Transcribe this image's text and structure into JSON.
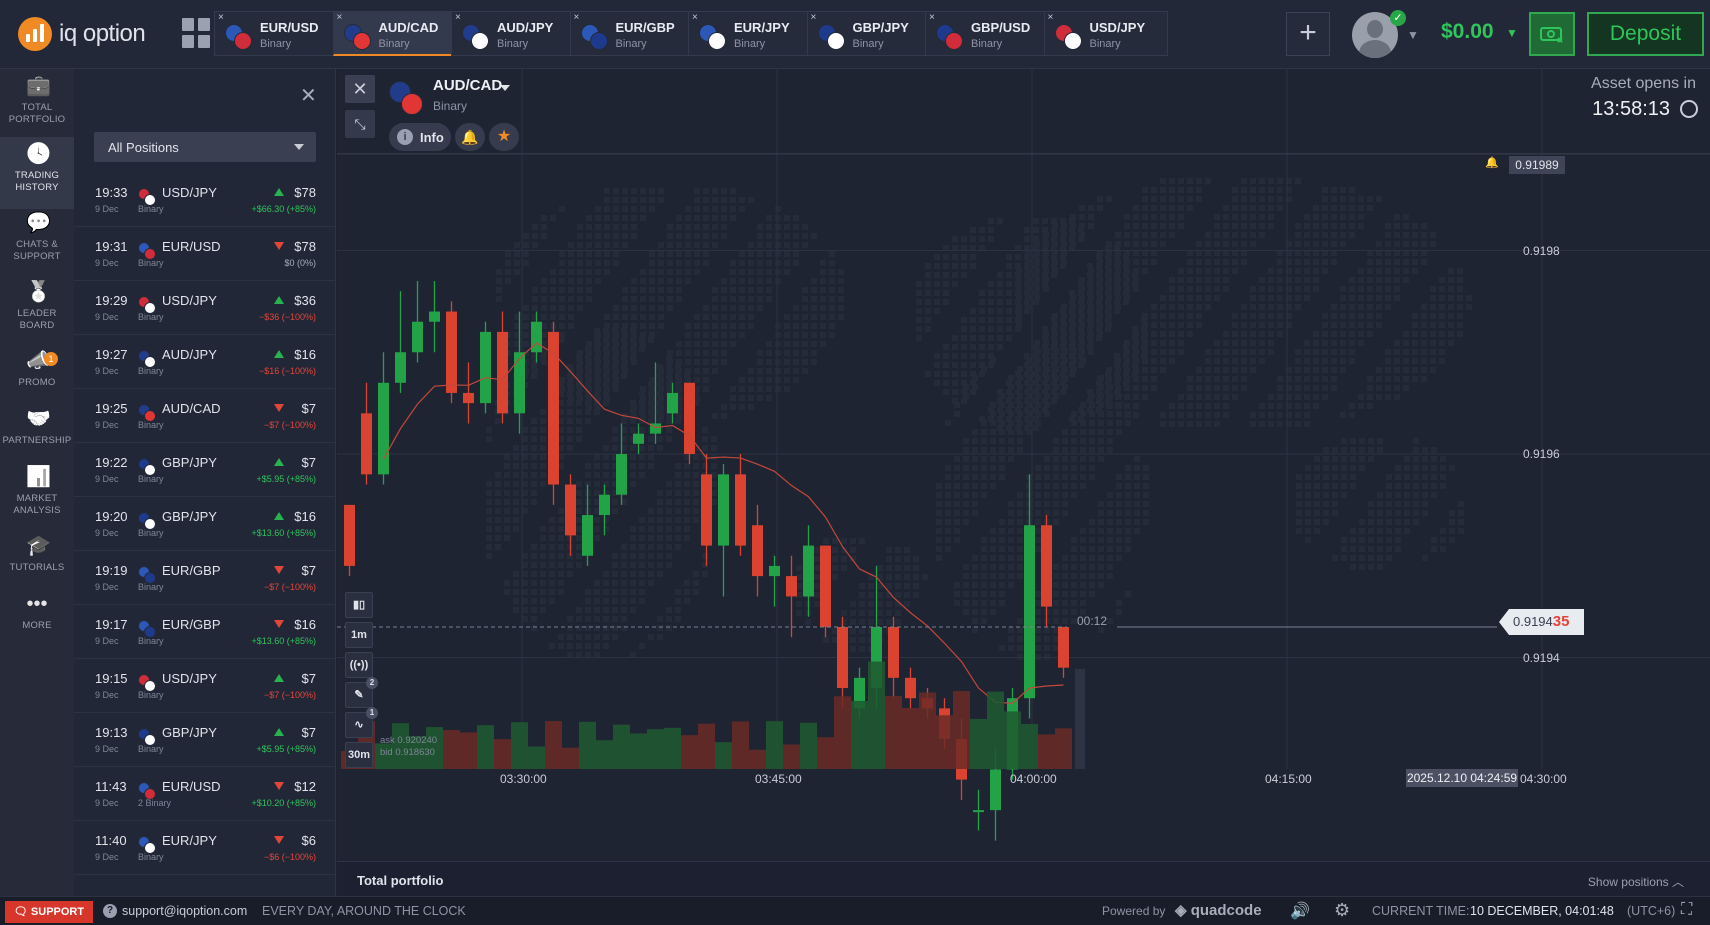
{
  "topbar": {
    "logo_text": "iq option",
    "tabs": [
      {
        "name": "EUR/USD",
        "type": "Binary",
        "flag_a": "#2c58b8",
        "flag_b": "#d02c3a"
      },
      {
        "name": "AUD/CAD",
        "type": "Binary",
        "flag_a": "#223c8c",
        "flag_b": "#e23535"
      },
      {
        "name": "AUD/JPY",
        "type": "Binary",
        "flag_a": "#223c8c",
        "flag_b": "#ffffff"
      },
      {
        "name": "EUR/GBP",
        "type": "Binary",
        "flag_a": "#2c58b8",
        "flag_b": "#1d3a8c"
      },
      {
        "name": "EUR/JPY",
        "type": "Binary",
        "flag_a": "#2c58b8",
        "flag_b": "#ffffff"
      },
      {
        "name": "GBP/JPY",
        "type": "Binary",
        "flag_a": "#1d3a8c",
        "flag_b": "#ffffff"
      },
      {
        "name": "GBP/USD",
        "type": "Binary",
        "flag_a": "#1d3a8c",
        "flag_b": "#d02c3a"
      },
      {
        "name": "USD/JPY",
        "type": "Binary",
        "flag_a": "#d02c3a",
        "flag_b": "#ffffff"
      }
    ],
    "tab_close": "×",
    "plus": "+",
    "balance": "$0.00",
    "deposit": "Deposit"
  },
  "nav": [
    {
      "icon": "briefcase-icon",
      "label1": "TOTAL",
      "label2": "PORTFOLIO"
    },
    {
      "icon": "clock-icon",
      "label1": "TRADING",
      "label2": "HISTORY"
    },
    {
      "icon": "chat-icon",
      "label1": "CHATS &",
      "label2": "SUPPORT"
    },
    {
      "icon": "medal-icon",
      "label1": "LEADER",
      "label2": "BOARD"
    },
    {
      "icon": "megaphone-icon",
      "label1": "PROMO",
      "label2": "",
      "badge": "1"
    },
    {
      "icon": "handshake-icon",
      "label1": "PARTNERSHIP",
      "label2": ""
    },
    {
      "icon": "analysis-icon",
      "label1": "MARKET",
      "label2": "ANALYSIS"
    },
    {
      "icon": "graduation-icon",
      "label1": "TUTORIALS",
      "label2": ""
    },
    {
      "icon": "more-icon",
      "label1": "MORE",
      "label2": ""
    }
  ],
  "history": {
    "filter": "All Positions",
    "trades": [
      {
        "time": "19:33",
        "date": "9 Dec",
        "asset": "USD/JPY",
        "type": "Binary",
        "dir": "up",
        "amount": "$78",
        "pl": "+$66.30 (+85%)",
        "plc": "pos"
      },
      {
        "time": "19:31",
        "date": "9 Dec",
        "asset": "EUR/USD",
        "type": "Binary",
        "dir": "dn",
        "amount": "$78",
        "pl": "$0 (0%)",
        "plc": "zero"
      },
      {
        "time": "19:29",
        "date": "9 Dec",
        "asset": "USD/JPY",
        "type": "Binary",
        "dir": "up",
        "amount": "$36",
        "pl": "−$36 (−100%)",
        "plc": "neg"
      },
      {
        "time": "19:27",
        "date": "9 Dec",
        "asset": "AUD/JPY",
        "type": "Binary",
        "dir": "up",
        "amount": "$16",
        "pl": "−$16 (−100%)",
        "plc": "neg"
      },
      {
        "time": "19:25",
        "date": "9 Dec",
        "asset": "AUD/CAD",
        "type": "Binary",
        "dir": "dn",
        "amount": "$7",
        "pl": "−$7 (−100%)",
        "plc": "neg"
      },
      {
        "time": "19:22",
        "date": "9 Dec",
        "asset": "GBP/JPY",
        "type": "Binary",
        "dir": "up",
        "amount": "$7",
        "pl": "+$5.95 (+85%)",
        "plc": "pos"
      },
      {
        "time": "19:20",
        "date": "9 Dec",
        "asset": "GBP/JPY",
        "type": "Binary",
        "dir": "up",
        "amount": "$16",
        "pl": "+$13.60 (+85%)",
        "plc": "pos"
      },
      {
        "time": "19:19",
        "date": "9 Dec",
        "asset": "EUR/GBP",
        "type": "Binary",
        "dir": "dn",
        "amount": "$7",
        "pl": "−$7 (−100%)",
        "plc": "neg"
      },
      {
        "time": "19:17",
        "date": "9 Dec",
        "asset": "EUR/GBP",
        "type": "Binary",
        "dir": "dn",
        "amount": "$16",
        "pl": "+$13.60 (+85%)",
        "plc": "pos"
      },
      {
        "time": "19:15",
        "date": "9 Dec",
        "asset": "USD/JPY",
        "type": "Binary",
        "dir": "up",
        "amount": "$7",
        "pl": "−$7 (−100%)",
        "plc": "neg"
      },
      {
        "time": "19:13",
        "date": "9 Dec",
        "asset": "GBP/JPY",
        "type": "Binary",
        "dir": "up",
        "amount": "$7",
        "pl": "+$5.95 (+85%)",
        "plc": "pos"
      },
      {
        "time": "11:43",
        "date": "9 Dec",
        "asset": "EUR/USD",
        "type": "2 Binary",
        "dir": "dn",
        "amount": "$12",
        "pl": "+$10.20 (+85%)",
        "plc": "pos"
      },
      {
        "time": "11:40",
        "date": "9 Dec",
        "asset": "EUR/JPY",
        "type": "Binary",
        "dir": "dn",
        "amount": "$6",
        "pl": "−$6 (−100%)",
        "plc": "neg"
      }
    ]
  },
  "chart": {
    "asset": "AUD/CAD",
    "asset_type": "Binary",
    "info": "Info",
    "opens_label": "Asset opens in",
    "opens_time": "13:58:13",
    "top_price": "0.91989",
    "y_labels": [
      "0.9198",
      "0.9196",
      "0.9194"
    ],
    "current_price_main": "0.9194",
    "current_price_last": "35",
    "timer": "00:12",
    "tools": {
      "timeframe": "1m",
      "interval": "30m",
      "draw_badge": "2",
      "indicator_badge": "1"
    },
    "ask": "ask 0.920240",
    "bid": "bid 0.918630",
    "x_labels": [
      "03:30:00",
      "03:45:00",
      "04:00:00",
      "04:15:00",
      "04:30:00"
    ],
    "date_box": "2025.12.10 04:24:59"
  },
  "chart_data": {
    "type": "candlestick",
    "y_ticks": [
      0.9198,
      0.9196,
      0.9194
    ],
    "x_ticks": [
      "03:30:00",
      "03:45:00",
      "04:00:00",
      "04:15:00",
      "04:30:00"
    ],
    "current_price": 0.91943,
    "colors": {
      "up": "#23a348",
      "down": "#d9432f",
      "ma": "#c3483b"
    },
    "candles": [
      [
        0.91955,
        0.91949,
        0.91955,
        0.91948
      ],
      [
        0.91964,
        0.91958,
        0.91967,
        0.91957
      ],
      [
        0.91958,
        0.91967,
        0.9197,
        0.91957
      ],
      [
        0.91967,
        0.9197,
        0.91976,
        0.91966
      ],
      [
        0.9197,
        0.91973,
        0.91977,
        0.91969
      ],
      [
        0.91973,
        0.91974,
        0.91977,
        0.9197
      ],
      [
        0.91974,
        0.91966,
        0.91975,
        0.91965
      ],
      [
        0.91966,
        0.91965,
        0.91969,
        0.91963
      ],
      [
        0.91965,
        0.91972,
        0.91973,
        0.91964
      ],
      [
        0.91972,
        0.91964,
        0.91974,
        0.91963
      ],
      [
        0.91964,
        0.9197,
        0.91974,
        0.91962
      ],
      [
        0.9197,
        0.91973,
        0.91974,
        0.91969
      ],
      [
        0.91972,
        0.91957,
        0.91973,
        0.91955
      ],
      [
        0.91957,
        0.91952,
        0.91958,
        0.9195
      ],
      [
        0.9195,
        0.91954,
        0.91957,
        0.91949
      ],
      [
        0.91954,
        0.91956,
        0.91957,
        0.91952
      ],
      [
        0.91956,
        0.9196,
        0.91963,
        0.91955
      ],
      [
        0.91961,
        0.91962,
        0.91963,
        0.9196
      ],
      [
        0.91962,
        0.91963,
        0.91969,
        0.91961
      ],
      [
        0.91964,
        0.91966,
        0.91967,
        0.91963
      ],
      [
        0.91967,
        0.9196,
        0.91967,
        0.91959
      ],
      [
        0.91958,
        0.91951,
        0.9196,
        0.91949
      ],
      [
        0.91951,
        0.91958,
        0.91959,
        0.91946
      ],
      [
        0.91958,
        0.91951,
        0.9196,
        0.9195
      ],
      [
        0.91953,
        0.91948,
        0.91955,
        0.91946
      ],
      [
        0.91948,
        0.91949,
        0.9195,
        0.91945
      ],
      [
        0.91948,
        0.91946,
        0.9195,
        0.91942
      ],
      [
        0.91946,
        0.91951,
        0.91953,
        0.91944
      ],
      [
        0.91951,
        0.91943,
        0.91951,
        0.91942
      ],
      [
        0.91943,
        0.91937,
        0.91944,
        0.91935
      ],
      [
        0.91935,
        0.91938,
        0.91939,
        0.91934
      ],
      [
        0.91937,
        0.91943,
        0.91949,
        0.91935
      ],
      [
        0.91943,
        0.91938,
        0.91944,
        0.91936
      ],
      [
        0.91938,
        0.91936,
        0.91939,
        0.91935
      ],
      [
        0.91936,
        0.91935,
        0.91937,
        0.91934
      ],
      [
        0.91935,
        0.91932,
        0.91936,
        0.91931
      ],
      [
        0.91932,
        0.91928,
        0.91934,
        0.91926
      ],
      [
        0.91925,
        0.91925,
        0.91927,
        0.91923
      ],
      [
        0.91925,
        0.91929,
        0.91931,
        0.91922
      ],
      [
        0.91929,
        0.91936,
        0.91937,
        0.91928
      ],
      [
        0.91936,
        0.91953,
        0.91958,
        0.91934
      ],
      [
        0.91953,
        0.91945,
        0.91954,
        0.91943
      ],
      [
        0.91943,
        0.91939,
        0.91943,
        0.91938
      ]
    ]
  },
  "portfolio_bar": {
    "title": "Total portfolio",
    "show": "Show positions"
  },
  "bottom": {
    "support": "SUPPORT",
    "email": "support@iqoption.com",
    "availability": "EVERY DAY, AROUND THE CLOCK",
    "powered": "Powered by",
    "brand": "quadcode",
    "time_label": "CURRENT TIME:",
    "time": "10 DECEMBER, 04:01:48",
    "tz": "(UTC+6)"
  }
}
